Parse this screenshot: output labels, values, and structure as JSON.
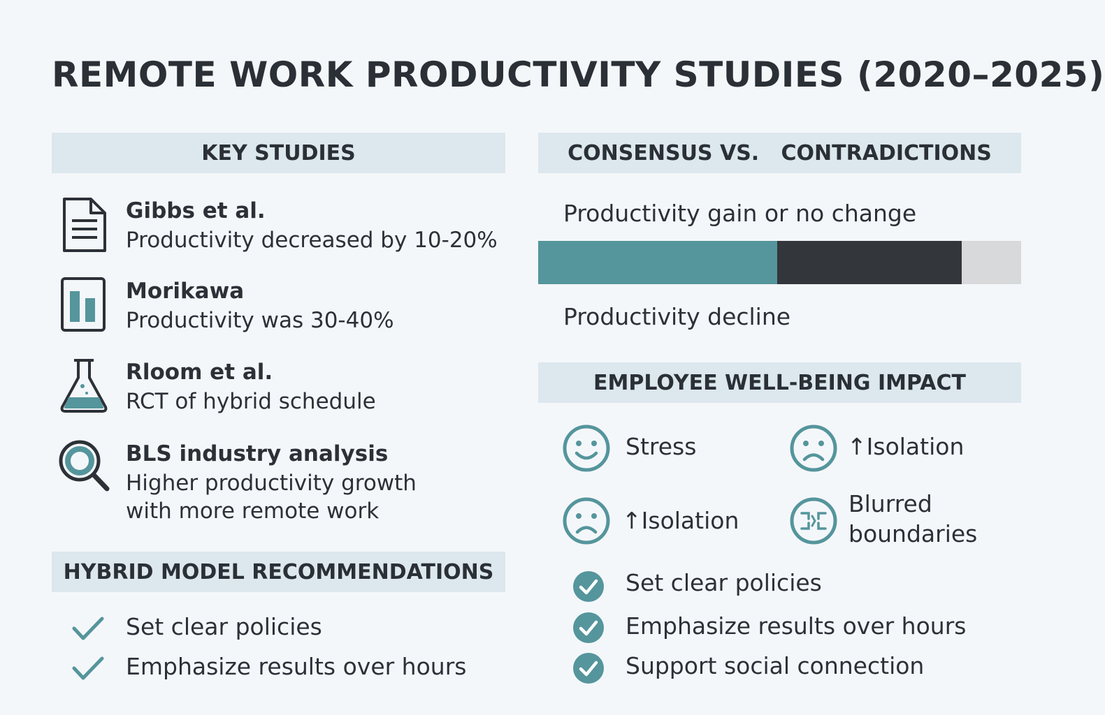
{
  "title": "REMOTE WORK PRODUCTIVITY STUDIES (2020–2025)",
  "colors": {
    "teal": "#55959c",
    "dark": "#33373b",
    "light": "#d8d9db",
    "band": "#dce7ee"
  },
  "key_studies": {
    "heading": "KEY STUDIES",
    "items": [
      {
        "icon": "document-icon",
        "name": "Gibbs et al.",
        "desc": "Productivity decreased by 10-20%"
      },
      {
        "icon": "bar-chart-icon",
        "name": "Morikawa",
        "desc": "Productivity was 30-40%"
      },
      {
        "icon": "flask-icon",
        "name": "Rloom et al.",
        "desc": "RCT of hybrid schedule"
      },
      {
        "icon": "magnifier-icon",
        "name": "BLS industry analysis",
        "desc": "Higher productivity growth with more remote work"
      }
    ]
  },
  "hybrid": {
    "heading": "HYBRID MODEL RECOMMENDATIONS",
    "items": [
      "Set clear policies",
      "Emphasize results over hours"
    ]
  },
  "consensus": {
    "heading": "CONSENSUS VS.   CONTRADICTIONS",
    "top_label": "Productivity gain or no change",
    "bottom_label": "Productivity decline",
    "bar_segments": [
      0.495,
      0.382,
      0.123
    ]
  },
  "wellbeing": {
    "heading": "EMPLOYEE WELL-BEING IMPACT",
    "items": [
      {
        "icon": "smiley-icon",
        "label": "Stress"
      },
      {
        "icon": "sad-face-icon",
        "label": "↑Isolation"
      },
      {
        "icon": "sad-face-icon",
        "label": "↑Isolation"
      },
      {
        "icon": "blurred-boundaries-icon",
        "label_line1": "Blurred",
        "label_line2": "boundaries"
      }
    ],
    "recommendations": [
      "Set clear policies",
      "Emphasize results over hours",
      "Support social connection"
    ]
  }
}
